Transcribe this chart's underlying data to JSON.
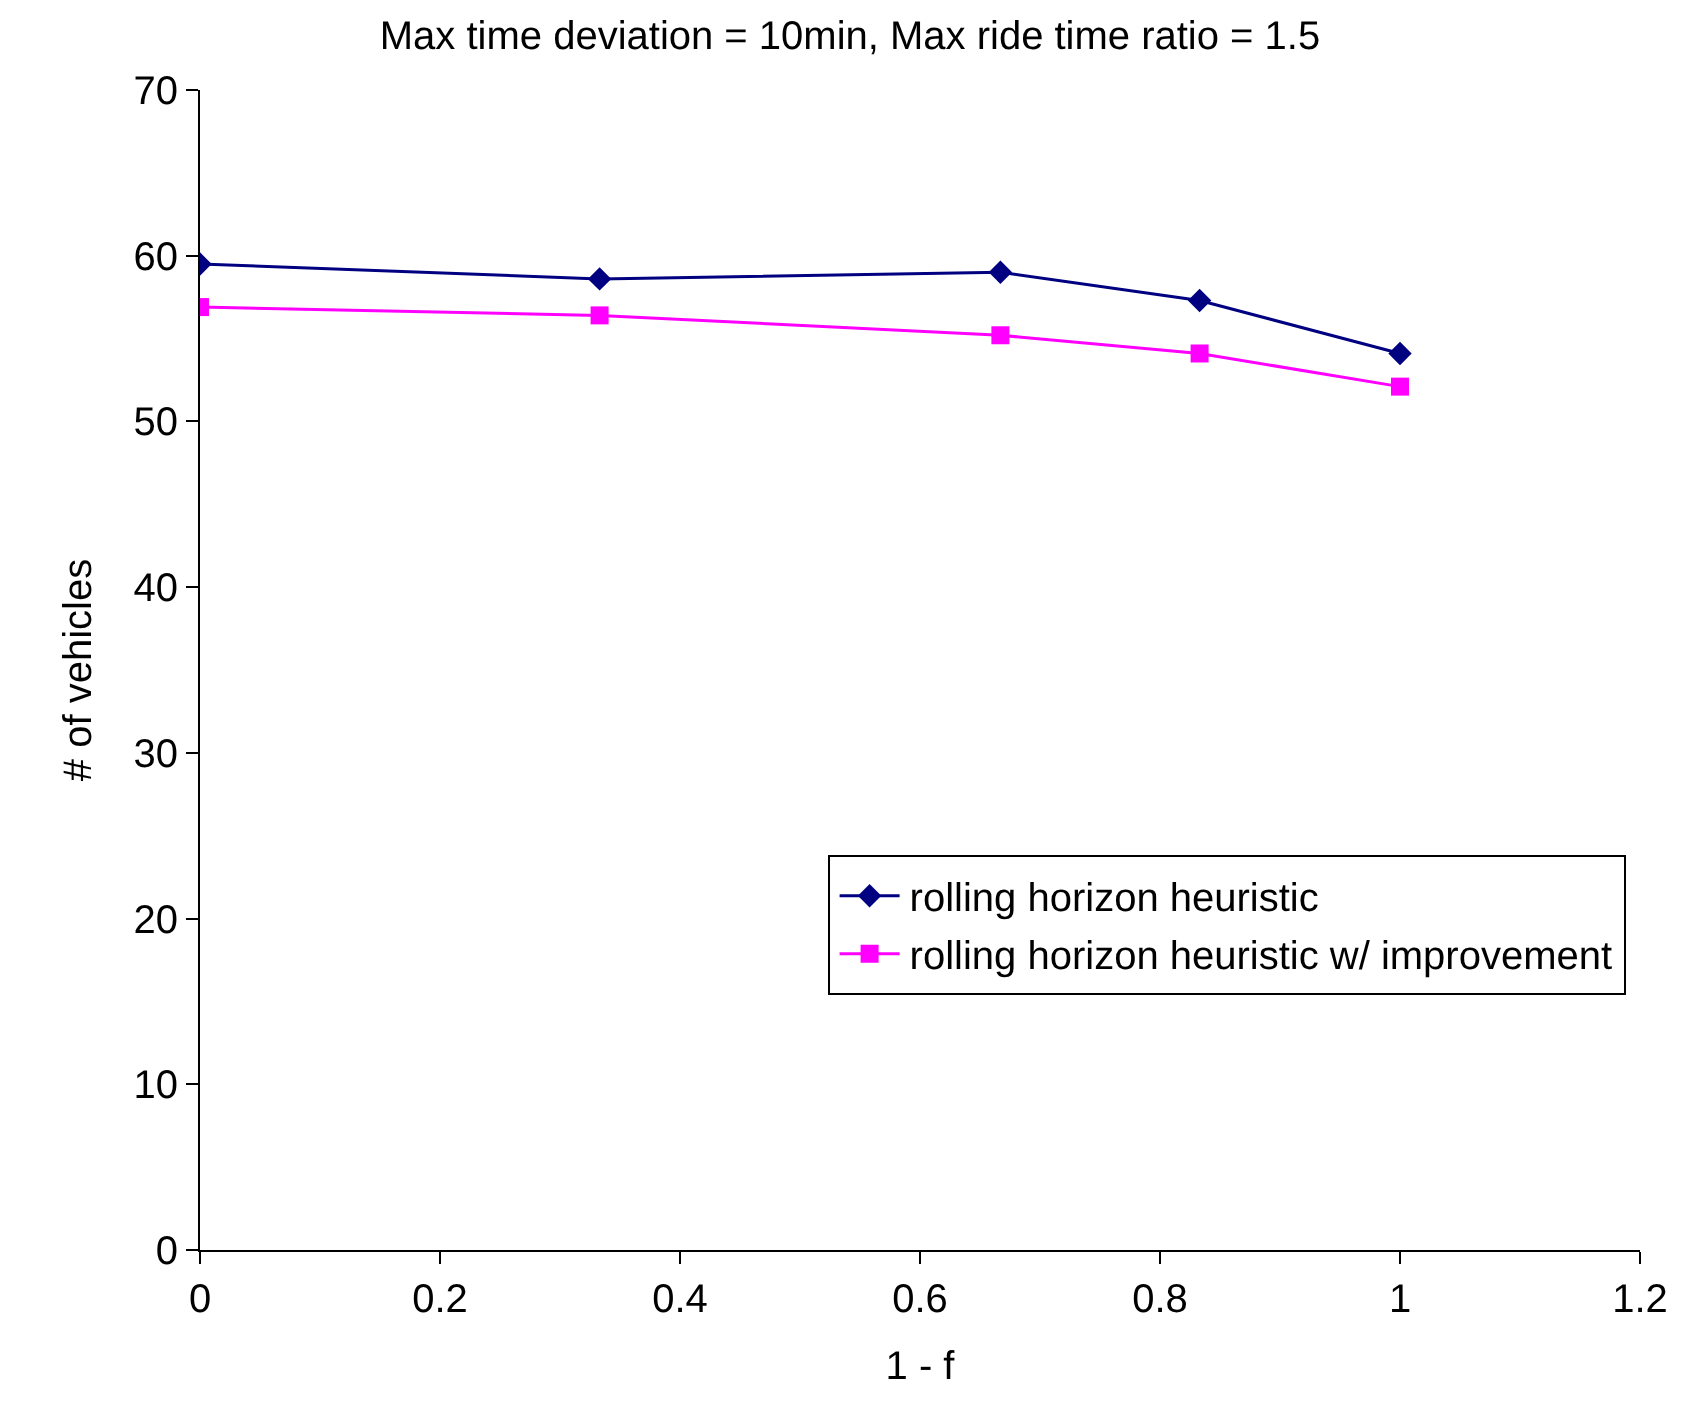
{
  "chart_data": {
    "type": "line",
    "title": "Max time deviation = 10min, Max ride time ratio = 1.5",
    "xlabel": "1 - f",
    "ylabel": "# of vehicles",
    "x": [
      0,
      0.333,
      0.667,
      0.833,
      1
    ],
    "series": [
      {
        "name": "rolling horizon heuristic",
        "color": "#000080",
        "marker": "diamond",
        "values": [
          59.5,
          58.6,
          59.0,
          57.3,
          54.1
        ]
      },
      {
        "name": "rolling horizon heuristic w/ improvement",
        "color": "#ff00ff",
        "marker": "square",
        "values": [
          56.9,
          56.4,
          55.2,
          54.1,
          52.1
        ]
      }
    ],
    "xlim": [
      0,
      1.2
    ],
    "xticks": [
      0,
      0.2,
      0.4,
      0.6,
      0.8,
      1,
      1.2
    ],
    "ylim": [
      0,
      70
    ],
    "yticks": [
      0,
      10,
      20,
      30,
      40,
      50,
      60,
      70
    ],
    "legend": "bottom right",
    "line_style": "solid"
  }
}
